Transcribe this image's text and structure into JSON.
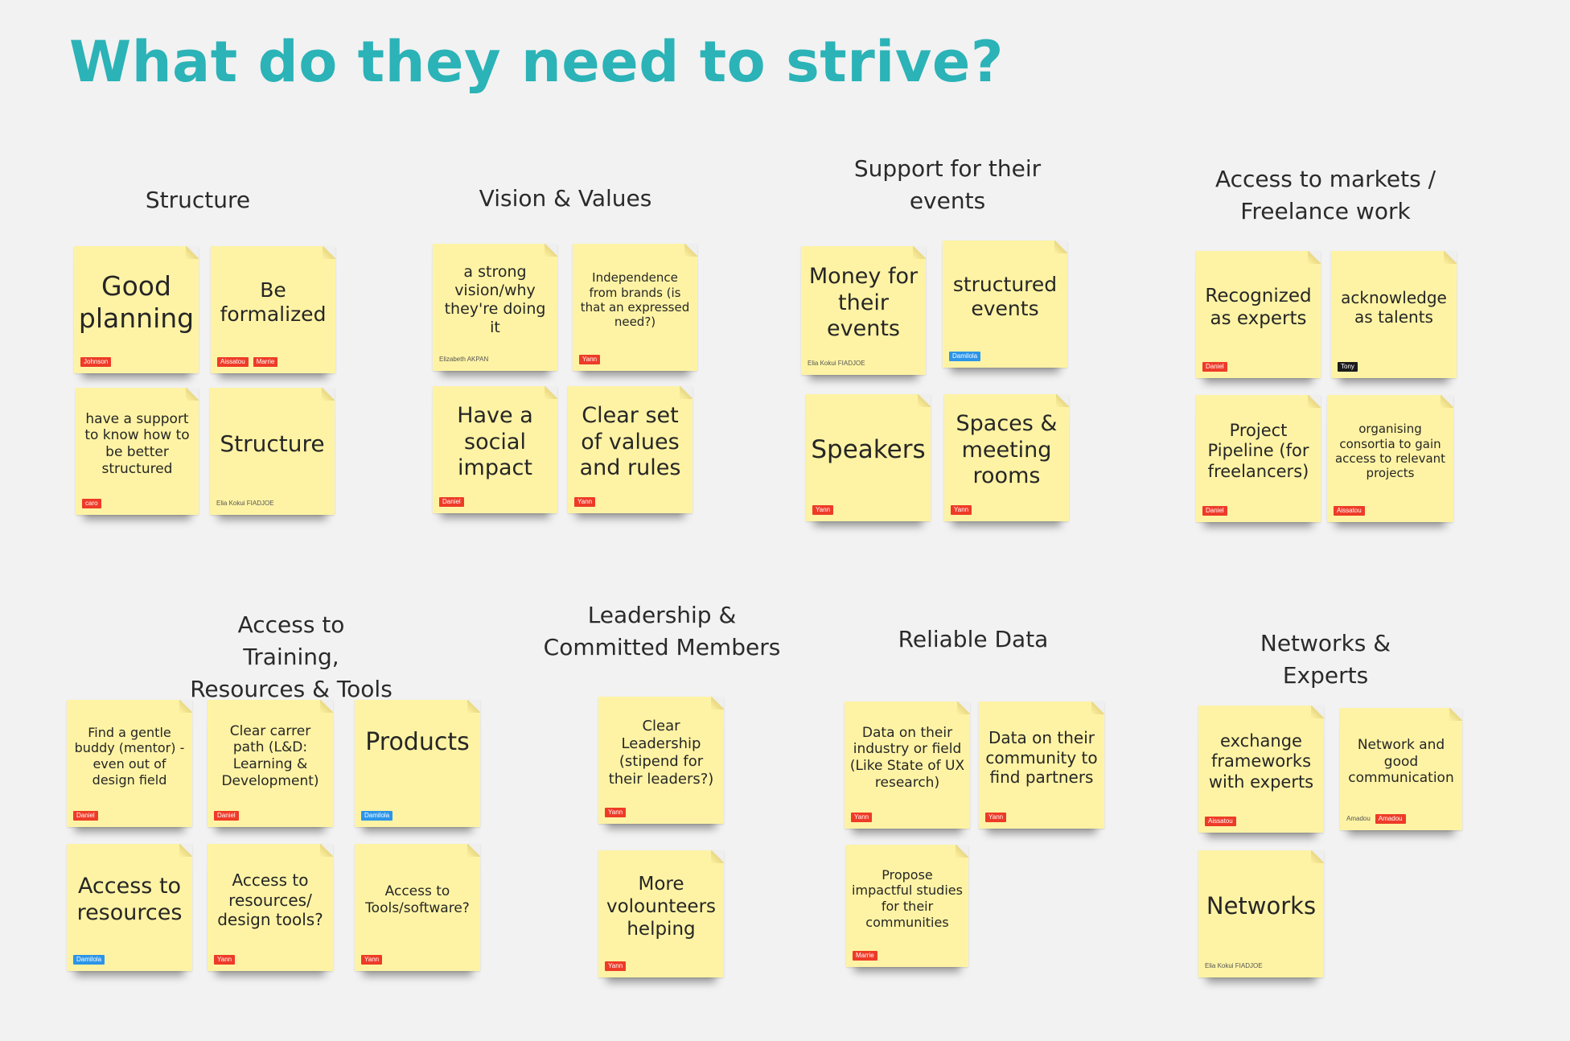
{
  "board": {
    "title": "What do they need to strive?"
  },
  "groups": {
    "structure": {
      "heading": "Structure",
      "notes": {
        "n1": {
          "text": "Good planning",
          "author": "Johnson",
          "color": "red"
        },
        "n2": {
          "text": "Be formalized",
          "authors": [
            "Aissatou",
            "Marrie"
          ],
          "color": "red"
        },
        "n3": {
          "text": "have a support to know how to be better structured",
          "author": "caro",
          "color": "red"
        },
        "n4": {
          "text": "Structure",
          "author": "Elia Kokui FIADJOE",
          "color": "plain"
        }
      }
    },
    "vision": {
      "heading": "Vision & Values",
      "notes": {
        "n1": {
          "text": "a strong vision/why they're doing it",
          "author": "Elizabeth AKPAN",
          "color": "plain"
        },
        "n2": {
          "text": "Independence from brands (is that an expressed need?)",
          "author": "Yann",
          "color": "red"
        },
        "n3": {
          "text": "Have a social impact",
          "author": "Daniel",
          "color": "red"
        },
        "n4": {
          "text": "Clear set of values and rules",
          "author": "Yann",
          "color": "red"
        }
      }
    },
    "events": {
      "heading": "Support for their events",
      "notes": {
        "n1": {
          "text": "Money for their events",
          "author": "Elia Kokui FIADJOE",
          "color": "plain"
        },
        "n2": {
          "text": "structured events",
          "author": "Damilola",
          "color": "blue"
        },
        "n3": {
          "text": "Speakers",
          "author": "Yann",
          "color": "red"
        },
        "n4": {
          "text": "Spaces & meeting rooms",
          "author": "Yann",
          "color": "red"
        }
      }
    },
    "markets": {
      "heading": "Access to markets / Freelance work",
      "notes": {
        "n1": {
          "text": "Recognized as experts",
          "author": "Daniel",
          "color": "red"
        },
        "n2": {
          "text": "acknowledge as talents",
          "author": "Tony",
          "color": "black"
        },
        "n3": {
          "text": "Project Pipeline (for freelancers)",
          "author": "Daniel",
          "color": "red"
        },
        "n4": {
          "text": "organising consortia to gain access to relevant projects",
          "author": "Aissatou",
          "color": "red"
        }
      }
    },
    "training": {
      "heading": "Access to Training, Resources & Tools",
      "notes": {
        "n1": {
          "text": "Find a gentle buddy (mentor) - even out of design field",
          "author": "Daniel",
          "color": "red"
        },
        "n2": {
          "text": "Clear carrer path (L&D: Learning & Development)",
          "author": "Daniel",
          "color": "red"
        },
        "n3": {
          "text": "Products",
          "author": "Damilola",
          "color": "blue"
        },
        "n4": {
          "text": "Access to resources",
          "author": "Damilola",
          "color": "blue"
        },
        "n5": {
          "text": "Access to resources/ design tools?",
          "author": "Yann",
          "color": "red"
        },
        "n6": {
          "text": "Access to Tools/software?",
          "author": "Yann",
          "color": "red"
        }
      }
    },
    "leadership": {
      "heading": "Leadership & Committed Members",
      "notes": {
        "n1": {
          "text": "Clear Leadership (stipend for their leaders?)",
          "author": "Yann",
          "color": "red"
        },
        "n2": {
          "text": "More volounteers helping",
          "author": "Yann",
          "color": "red"
        }
      }
    },
    "data": {
      "heading": "Reliable Data",
      "notes": {
        "n1": {
          "text": "Data on their industry or field (Like State of UX research)",
          "author": "Yann",
          "color": "red"
        },
        "n2": {
          "text": "Data on their community to find partners",
          "author": "Yann",
          "color": "red"
        },
        "n3": {
          "text": "Propose impactful studies for their communities",
          "author": "Marrie",
          "color": "red"
        }
      }
    },
    "networks": {
      "heading": "Networks & Experts",
      "notes": {
        "n1": {
          "text": "exchange frameworks with experts",
          "author": "Aissatou",
          "color": "red"
        },
        "n2": {
          "text": "Network and good communication",
          "authors": [
            "Amadou",
            "Amadou"
          ],
          "color": "mixed"
        },
        "n3": {
          "text": "Networks",
          "author": "Elia Kokui FIADJOE",
          "color": "plain"
        }
      }
    }
  }
}
